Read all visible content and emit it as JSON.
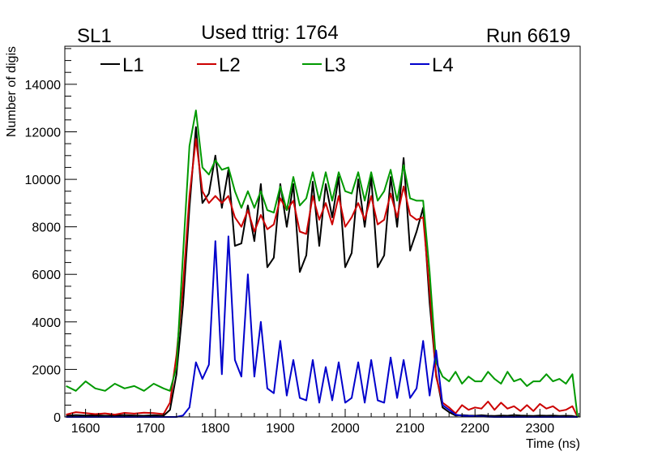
{
  "chart_data": {
    "type": "line",
    "title_left": "SL1",
    "title_center": "Used ttrig: 1764",
    "title_right": "Run 6619",
    "xlabel": "Time (ns)",
    "ylabel": "Number of digis",
    "xlim": [
      1568,
      2362
    ],
    "ylim": [
      0,
      15600
    ],
    "xticks": [
      1600,
      1700,
      1800,
      1900,
      2000,
      2100,
      2200,
      2300
    ],
    "yticks": [
      0,
      2000,
      4000,
      6000,
      8000,
      10000,
      12000,
      14000
    ],
    "x": [
      1570,
      1585,
      1600,
      1615,
      1630,
      1645,
      1660,
      1675,
      1690,
      1705,
      1720,
      1730,
      1740,
      1750,
      1760,
      1770,
      1780,
      1790,
      1800,
      1810,
      1820,
      1830,
      1840,
      1850,
      1860,
      1870,
      1880,
      1890,
      1900,
      1910,
      1920,
      1930,
      1940,
      1950,
      1960,
      1970,
      1980,
      1990,
      2000,
      2010,
      2020,
      2030,
      2040,
      2050,
      2060,
      2070,
      2080,
      2090,
      2100,
      2110,
      2120,
      2130,
      2140,
      2150,
      2160,
      2170,
      2180,
      2190,
      2200,
      2210,
      2220,
      2230,
      2240,
      2250,
      2260,
      2270,
      2280,
      2290,
      2300,
      2310,
      2320,
      2330,
      2340,
      2350,
      2358
    ],
    "series": [
      {
        "name": "L1",
        "color": "#000000",
        "values": [
          50,
          80,
          60,
          70,
          50,
          60,
          80,
          60,
          50,
          70,
          50,
          300,
          1800,
          4700,
          8800,
          12200,
          9000,
          9400,
          11000,
          8800,
          10400,
          7200,
          7300,
          8900,
          7400,
          9800,
          6300,
          6700,
          9800,
          8000,
          9800,
          6100,
          6800,
          9900,
          7200,
          9800,
          8400,
          10100,
          6300,
          6900,
          10000,
          8000,
          10100,
          6300,
          6800,
          10100,
          8000,
          10900,
          7000,
          7800,
          8800,
          4800,
          1800,
          400,
          200,
          60,
          80,
          60,
          50,
          70,
          50,
          40,
          60,
          50,
          80,
          60,
          50,
          40,
          60,
          50,
          60,
          40,
          50,
          40,
          0
        ]
      },
      {
        "name": "L2",
        "color": "#cc0000",
        "values": [
          100,
          200,
          160,
          120,
          150,
          100,
          170,
          140,
          180,
          160,
          120,
          600,
          2600,
          5500,
          9300,
          11700,
          9500,
          9000,
          9300,
          9000,
          9300,
          8400,
          8000,
          8700,
          7800,
          8500,
          7900,
          8100,
          9200,
          8700,
          9100,
          7800,
          7700,
          9300,
          8300,
          9000,
          8100,
          9300,
          8000,
          8400,
          9000,
          8300,
          9300,
          8100,
          8300,
          9400,
          8400,
          9700,
          8500,
          8300,
          8400,
          5300,
          1700,
          600,
          400,
          150,
          500,
          300,
          400,
          350,
          650,
          300,
          600,
          350,
          450,
          250,
          500,
          250,
          550,
          350,
          450,
          250,
          300,
          450,
          0
        ]
      },
      {
        "name": "L3",
        "color": "#009900",
        "values": [
          1300,
          1100,
          1500,
          1200,
          1100,
          1400,
          1200,
          1300,
          1100,
          1400,
          1200,
          1100,
          2100,
          6800,
          11400,
          12900,
          10500,
          10200,
          10800,
          10400,
          10500,
          9500,
          8800,
          9500,
          8800,
          9500,
          8700,
          8600,
          9700,
          8700,
          10100,
          8900,
          9200,
          10300,
          9100,
          10300,
          9100,
          10300,
          9500,
          9400,
          10300,
          9100,
          10300,
          9100,
          9500,
          10400,
          9100,
          10600,
          9200,
          9100,
          9100,
          6100,
          2300,
          1700,
          1500,
          1900,
          1400,
          1700,
          1500,
          1500,
          1900,
          1600,
          1400,
          1900,
          1500,
          1600,
          1300,
          1500,
          1500,
          1800,
          1500,
          1600,
          1400,
          1800,
          0
        ]
      },
      {
        "name": "L4",
        "color": "#0000cc",
        "values": [
          0,
          0,
          0,
          0,
          0,
          0,
          0,
          0,
          0,
          0,
          0,
          0,
          0,
          60,
          400,
          2300,
          1600,
          2200,
          7400,
          1800,
          7600,
          2400,
          1700,
          6000,
          1700,
          4000,
          1200,
          1000,
          3200,
          900,
          2400,
          800,
          700,
          2400,
          600,
          2100,
          700,
          2300,
          600,
          800,
          2300,
          600,
          2400,
          700,
          600,
          2500,
          800,
          2400,
          800,
          1200,
          3200,
          900,
          2800,
          500,
          300,
          100,
          50,
          40,
          30,
          20,
          10,
          0,
          0,
          0,
          0,
          0,
          0,
          0,
          0,
          0,
          0,
          0,
          0,
          0,
          0
        ]
      }
    ]
  }
}
